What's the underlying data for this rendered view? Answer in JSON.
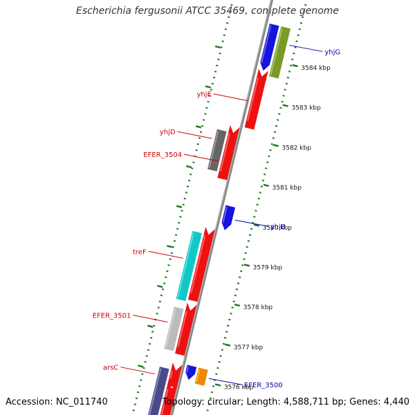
{
  "title": "Escherichia fergusonii ATCC 35469, complete genome",
  "title_color": "#333333",
  "footer": {
    "accession": "Accession: NC_011740",
    "summary": "Topology: circular; Length: 4,588,711 bp; Genes: 4,440"
  },
  "colors": {
    "backbone": "#888888",
    "ruler": "#227722",
    "forward_label": "#cc0000",
    "reverse_label": "#0000aa"
  },
  "ticks": [
    {
      "kbp": 3584,
      "label": "3584 kbp"
    },
    {
      "kbp": 3583,
      "label": "3583 kbp"
    },
    {
      "kbp": 3582,
      "label": "3582 kbp"
    },
    {
      "kbp": 3581,
      "label": "3581 kbp"
    },
    {
      "kbp": 3580,
      "label": "3580 kbp"
    },
    {
      "kbp": 3579,
      "label": "3579 kbp"
    },
    {
      "kbp": 3578,
      "label": "3578 kbp"
    },
    {
      "kbp": 3577,
      "label": "3577 kbp"
    },
    {
      "kbp": 3576,
      "label": "3576 kbp"
    }
  ],
  "features": [
    {
      "lane": 1,
      "start_kbp": 3584.85,
      "end_kbp": 3583.7,
      "color": "#1515dd",
      "arrow": "down"
    },
    {
      "lane": 2,
      "start_kbp": 3584.85,
      "end_kbp": 3583.6,
      "color": "#7a9a26",
      "arrow": "none"
    },
    {
      "lane": 1,
      "start_kbp": 3583.55,
      "end_kbp": 3582.25,
      "color": "#ee1111",
      "arrow": "up"
    },
    {
      "lane": -1,
      "start_kbp": 3582.05,
      "end_kbp": 3581.05,
      "color": "#666666",
      "arrow": "none"
    },
    {
      "lane": 0,
      "start_kbp": 3582.05,
      "end_kbp": 3580.9,
      "color": "#ee1111",
      "arrow": "up"
    },
    {
      "lane": 1,
      "start_kbp": 3580.3,
      "end_kbp": 3579.7,
      "color": "#1515dd",
      "arrow": "down"
    },
    {
      "lane": -1,
      "start_kbp": 3579.5,
      "end_kbp": 3577.8,
      "color": "#10c8c8",
      "arrow": "none"
    },
    {
      "lane": 0,
      "start_kbp": 3579.5,
      "end_kbp": 3577.85,
      "color": "#ee1111",
      "arrow": "up"
    },
    {
      "lane": -1,
      "start_kbp": 3577.6,
      "end_kbp": 3576.55,
      "color": "#bbbbbb",
      "arrow": "none"
    },
    {
      "lane": 0,
      "start_kbp": 3577.6,
      "end_kbp": 3576.5,
      "color": "#ee1111",
      "arrow": "up"
    },
    {
      "lane": 1,
      "start_kbp": 3576.3,
      "end_kbp": 3575.95,
      "color": "#1515dd",
      "arrow": "down"
    },
    {
      "lane": 2,
      "start_kbp": 3576.3,
      "end_kbp": 3575.9,
      "color": "#ee8800",
      "arrow": "none"
    },
    {
      "lane": -1,
      "start_kbp": 3576.1,
      "end_kbp": 3574.6,
      "color": "#4a4a8a",
      "arrow": "none"
    },
    {
      "lane": 0,
      "start_kbp": 3576.1,
      "end_kbp": 3575.7,
      "color": "#ee1111",
      "arrow": "up"
    },
    {
      "lane": 0,
      "start_kbp": 3575.65,
      "end_kbp": 3574.6,
      "color": "#ee1111",
      "arrow": "up"
    }
  ],
  "labels": [
    {
      "text": "yhjG",
      "side": "right",
      "kbp": 3584.45,
      "lane": 2,
      "color": "#0000aa"
    },
    {
      "text": "yhjE",
      "side": "left",
      "kbp": 3582.9,
      "lane": 1,
      "color": "#cc0000"
    },
    {
      "text": "yhjD",
      "side": "left",
      "kbp": 3581.8,
      "lane": -1,
      "color": "#cc0000"
    },
    {
      "text": "EFER_3504",
      "side": "left",
      "kbp": 3581.3,
      "lane": 0,
      "color": "#cc0000"
    },
    {
      "text": "yhjB",
      "side": "right",
      "kbp": 3580.0,
      "lane": 1,
      "color": "#0000aa"
    },
    {
      "text": "treF",
      "side": "left",
      "kbp": 3578.8,
      "lane": -1,
      "color": "#cc0000"
    },
    {
      "text": "EFER_3501",
      "side": "left",
      "kbp": 3577.2,
      "lane": -1,
      "color": "#cc0000"
    },
    {
      "text": "arsC",
      "side": "left",
      "kbp": 3575.9,
      "lane": -1,
      "color": "#cc0000"
    },
    {
      "text": "EFER_3500",
      "side": "right",
      "kbp": 3576.1,
      "lane": 2,
      "color": "#0000aa"
    }
  ]
}
